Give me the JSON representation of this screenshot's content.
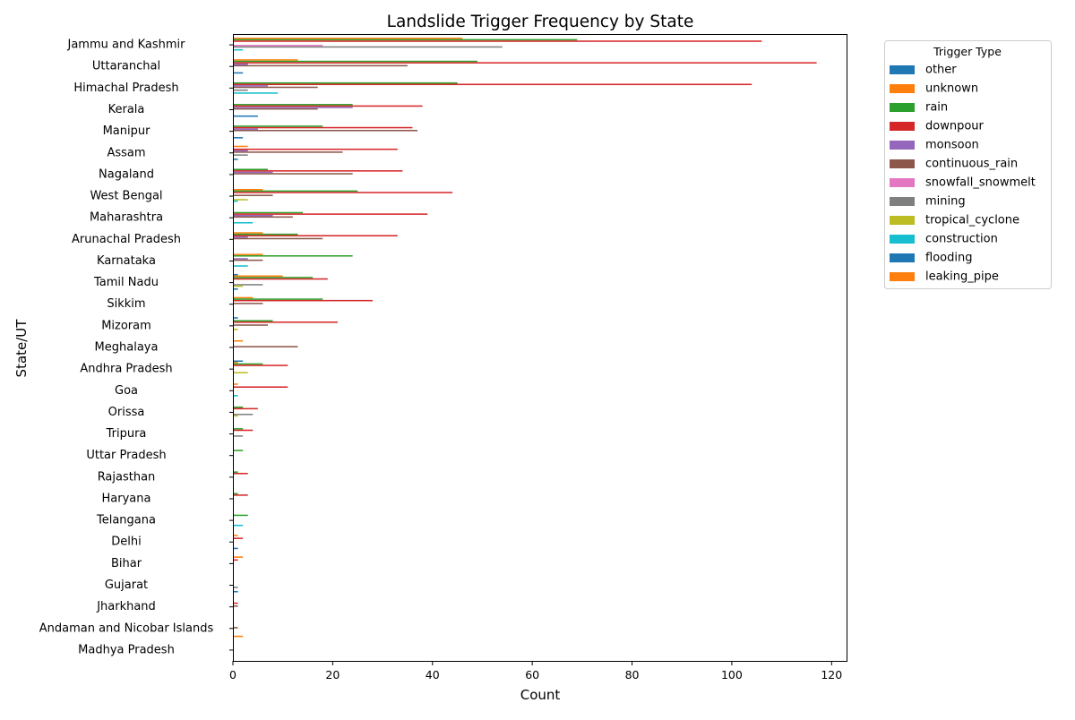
{
  "chart_data": {
    "type": "bar",
    "orientation": "horizontal",
    "title": "Landslide Trigger Frequency by State",
    "xlabel": "Count",
    "ylabel": "State/UT",
    "xlim": [
      0,
      123
    ],
    "xticks": [
      0,
      20,
      40,
      60,
      80,
      100,
      120
    ],
    "legend_title": "Trigger Type",
    "legend_position": "outside-right",
    "grid": false,
    "categories": [
      "Jammu and Kashmir",
      "Uttaranchal",
      "Himachal Pradesh",
      "Kerala",
      "Manipur",
      "Assam",
      "Nagaland",
      "West Bengal",
      "Maharashtra",
      "Arunachal Pradesh",
      "Karnataka",
      "Tamil Nadu",
      "Sikkim",
      "Mizoram",
      "Meghalaya",
      "Andhra Pradesh",
      "Goa",
      "Orissa",
      "Tripura",
      "Uttar Pradesh",
      "Rajasthan",
      "Haryana",
      "Telangana",
      "Delhi",
      "Bihar",
      "Gujarat",
      "Jharkhand",
      "Andaman and Nicobar Islands",
      "Madhya Pradesh"
    ],
    "series": [
      {
        "name": "other",
        "color": "#1f77b4",
        "values": [
          0,
          0,
          0,
          0,
          0,
          0,
          0,
          0,
          0,
          0,
          0,
          1,
          0,
          1,
          0,
          2,
          0,
          0,
          0,
          0,
          0,
          0,
          0,
          0,
          0,
          0,
          0,
          0,
          0
        ]
      },
      {
        "name": "unknown",
        "color": "#ff7f0e",
        "values": [
          46,
          13,
          0,
          0,
          0,
          3,
          0,
          6,
          0,
          6,
          6,
          10,
          4,
          0,
          2,
          1,
          1,
          0,
          0,
          0,
          0,
          0,
          0,
          1,
          2,
          0,
          0,
          0,
          0
        ]
      },
      {
        "name": "rain",
        "color": "#2ca02c",
        "values": [
          69,
          49,
          45,
          24,
          18,
          0,
          7,
          25,
          14,
          13,
          24,
          16,
          18,
          8,
          0,
          6,
          0,
          2,
          2,
          2,
          1,
          1,
          3,
          0,
          0,
          0,
          0,
          0,
          0
        ]
      },
      {
        "name": "downpour",
        "color": "#d62728",
        "values": [
          106,
          117,
          104,
          38,
          36,
          33,
          34,
          44,
          39,
          33,
          0,
          19,
          28,
          21,
          0,
          11,
          11,
          5,
          4,
          0,
          3,
          3,
          0,
          2,
          1,
          0,
          1,
          0,
          0
        ]
      },
      {
        "name": "monsoon",
        "color": "#9467bd",
        "values": [
          0,
          3,
          7,
          24,
          5,
          3,
          8,
          0,
          8,
          3,
          3,
          0,
          0,
          0,
          0,
          0,
          0,
          0,
          0,
          0,
          0,
          0,
          0,
          0,
          0,
          0,
          0,
          0,
          0
        ]
      },
      {
        "name": "continuous_rain",
        "color": "#8c564b",
        "values": [
          0,
          35,
          17,
          17,
          37,
          22,
          24,
          8,
          12,
          18,
          6,
          0,
          6,
          7,
          13,
          0,
          0,
          0,
          0,
          0,
          0,
          0,
          0,
          0,
          0,
          0,
          1,
          1,
          0
        ]
      },
      {
        "name": "snowfall_snowmelt",
        "color": "#e377c2",
        "values": [
          18,
          0,
          0,
          0,
          0,
          0,
          0,
          0,
          0,
          0,
          0,
          0,
          0,
          0,
          0,
          0,
          0,
          0,
          0,
          0,
          0,
          0,
          0,
          0,
          0,
          0,
          0,
          0,
          0
        ]
      },
      {
        "name": "mining",
        "color": "#7f7f7f",
        "values": [
          54,
          0,
          3,
          0,
          0,
          3,
          0,
          0,
          0,
          0,
          0,
          6,
          0,
          0,
          0,
          0,
          0,
          4,
          2,
          0,
          0,
          0,
          0,
          0,
          0,
          1,
          0,
          0,
          0
        ]
      },
      {
        "name": "tropical_cyclone",
        "color": "#bcbd22",
        "values": [
          0,
          0,
          0,
          0,
          0,
          0,
          0,
          3,
          0,
          0,
          0,
          2,
          0,
          1,
          0,
          3,
          0,
          1,
          0,
          0,
          0,
          0,
          0,
          0,
          0,
          0,
          0,
          0,
          0
        ]
      },
      {
        "name": "construction",
        "color": "#17becf",
        "values": [
          2,
          0,
          9,
          0,
          0,
          0,
          0,
          1,
          4,
          0,
          3,
          0,
          0,
          0,
          0,
          0,
          1,
          0,
          0,
          0,
          0,
          0,
          2,
          0,
          0,
          0,
          0,
          0,
          0
        ]
      },
      {
        "name": "flooding",
        "color": "#1f77b4",
        "values": [
          0,
          2,
          0,
          5,
          2,
          1,
          0,
          0,
          0,
          0,
          0,
          1,
          0,
          0,
          0,
          0,
          0,
          0,
          0,
          0,
          0,
          0,
          0,
          1,
          0,
          1,
          0,
          0,
          0
        ]
      },
      {
        "name": "leaking_pipe",
        "color": "#ff7f0e",
        "values": [
          0,
          0,
          0,
          0,
          0,
          0,
          0,
          0,
          0,
          0,
          0,
          0,
          0,
          0,
          0,
          0,
          0,
          0,
          0,
          0,
          0,
          0,
          0,
          0,
          0,
          0,
          0,
          2,
          0
        ]
      }
    ]
  }
}
